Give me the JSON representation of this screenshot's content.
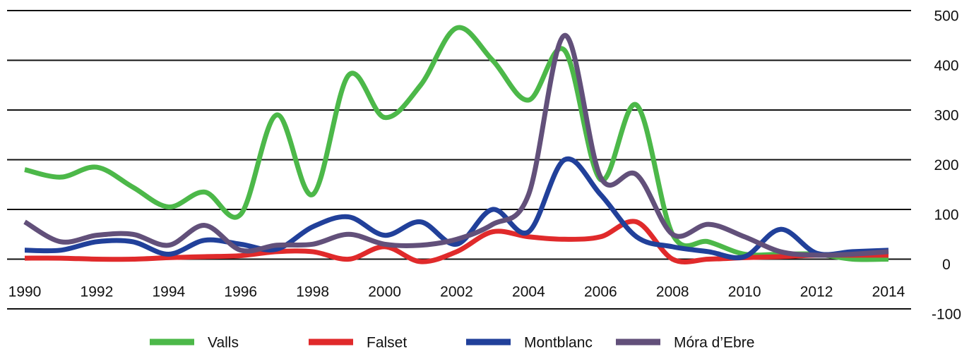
{
  "chart_data": {
    "type": "line",
    "x": [
      1990,
      1991,
      1992,
      1993,
      1994,
      1995,
      1996,
      1997,
      1998,
      1999,
      2000,
      2001,
      2002,
      2003,
      2004,
      2005,
      2006,
      2007,
      2008,
      2009,
      2010,
      2011,
      2012,
      2013,
      2014
    ],
    "series": [
      {
        "name": "Valls",
        "color": "#4cb849",
        "values": [
          180,
          165,
          185,
          145,
          105,
          135,
          90,
          290,
          130,
          370,
          285,
          350,
          465,
          400,
          320,
          420,
          160,
          310,
          50,
          35,
          10,
          10,
          10,
          0,
          0
        ]
      },
      {
        "name": "Falset",
        "color": "#e02a2b",
        "values": [
          2,
          2,
          0,
          0,
          3,
          5,
          7,
          15,
          15,
          0,
          25,
          -5,
          15,
          55,
          45,
          40,
          45,
          75,
          0,
          0,
          3,
          5,
          8,
          8,
          8
        ]
      },
      {
        "name": "Montblanc",
        "color": "#21409a",
        "values": [
          18,
          18,
          35,
          35,
          10,
          38,
          30,
          20,
          65,
          85,
          48,
          75,
          30,
          100,
          55,
          200,
          130,
          45,
          25,
          15,
          5,
          60,
          12,
          15,
          18
        ]
      },
      {
        "name": "Móra d’Ebre",
        "color": "#62507a",
        "values": [
          75,
          35,
          48,
          50,
          28,
          68,
          18,
          28,
          30,
          50,
          30,
          28,
          40,
          70,
          130,
          450,
          165,
          170,
          50,
          70,
          45,
          15,
          8,
          10,
          15
        ]
      }
    ],
    "xlim": [
      1990,
      2014
    ],
    "xticks": [
      1990,
      1992,
      1994,
      1996,
      1998,
      2000,
      2002,
      2004,
      2006,
      2008,
      2010,
      2012,
      2014
    ],
    "ylim": [
      -100,
      500
    ],
    "yticks": [
      -100,
      0,
      100,
      200,
      300,
      400,
      500
    ],
    "grid": true,
    "legend": "bottom"
  }
}
